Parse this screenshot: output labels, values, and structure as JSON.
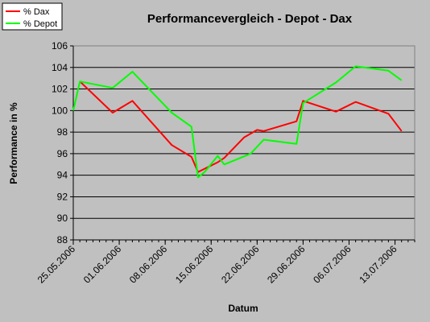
{
  "chart_data": {
    "type": "line",
    "title": "Performancevergleich - Depot - Dax",
    "xlabel": "Datum",
    "ylabel": "Performance in %",
    "ylim": [
      88,
      106
    ],
    "yticks": [
      "88",
      "90",
      "92",
      "94",
      "96",
      "98",
      "100",
      "102",
      "104",
      "106"
    ],
    "xlim": [
      "2006-05-25",
      "2006-07-16"
    ],
    "xtick_labels": [
      "25.05.2006",
      "01.06.2006",
      "08.06.2006",
      "15.06.2006",
      "22.06.2006",
      "29.06.2006",
      "06.07.2006",
      "13.07.2006"
    ],
    "grid": "horizontal",
    "legend_position": "top-left",
    "series": [
      {
        "name": "% Dax",
        "color": "#ff0000",
        "x": [
          "2006-05-26",
          "2006-05-31",
          "2006-06-03",
          "2006-06-09",
          "2006-06-12",
          "2006-06-13",
          "2006-06-14",
          "2006-06-16",
          "2006-06-17",
          "2006-06-20",
          "2006-06-22",
          "2006-06-23",
          "2006-06-28",
          "2006-06-29",
          "2006-07-04",
          "2006-07-07",
          "2006-07-12",
          "2006-07-14"
        ],
        "y": [
          102.7,
          99.8,
          100.9,
          96.8,
          95.7,
          94.3,
          94.6,
          95.2,
          95.6,
          97.5,
          98.2,
          98.1,
          99.0,
          100.9,
          99.9,
          100.8,
          99.7,
          98.1
        ]
      },
      {
        "name": "% Depot",
        "color": "#00ff00",
        "x": [
          "2006-05-25",
          "2006-05-26",
          "2006-05-31",
          "2006-06-03",
          "2006-06-09",
          "2006-06-12",
          "2006-06-13",
          "2006-06-14",
          "2006-06-16",
          "2006-06-17",
          "2006-06-21",
          "2006-06-23",
          "2006-06-28",
          "2006-06-29",
          "2006-07-04",
          "2006-07-07",
          "2006-07-12",
          "2006-07-14"
        ],
        "y": [
          100.0,
          102.7,
          102.1,
          103.6,
          99.8,
          98.5,
          93.8,
          94.3,
          95.8,
          95.0,
          96.0,
          97.3,
          96.9,
          100.7,
          102.6,
          104.1,
          103.7,
          102.8
        ]
      }
    ]
  }
}
